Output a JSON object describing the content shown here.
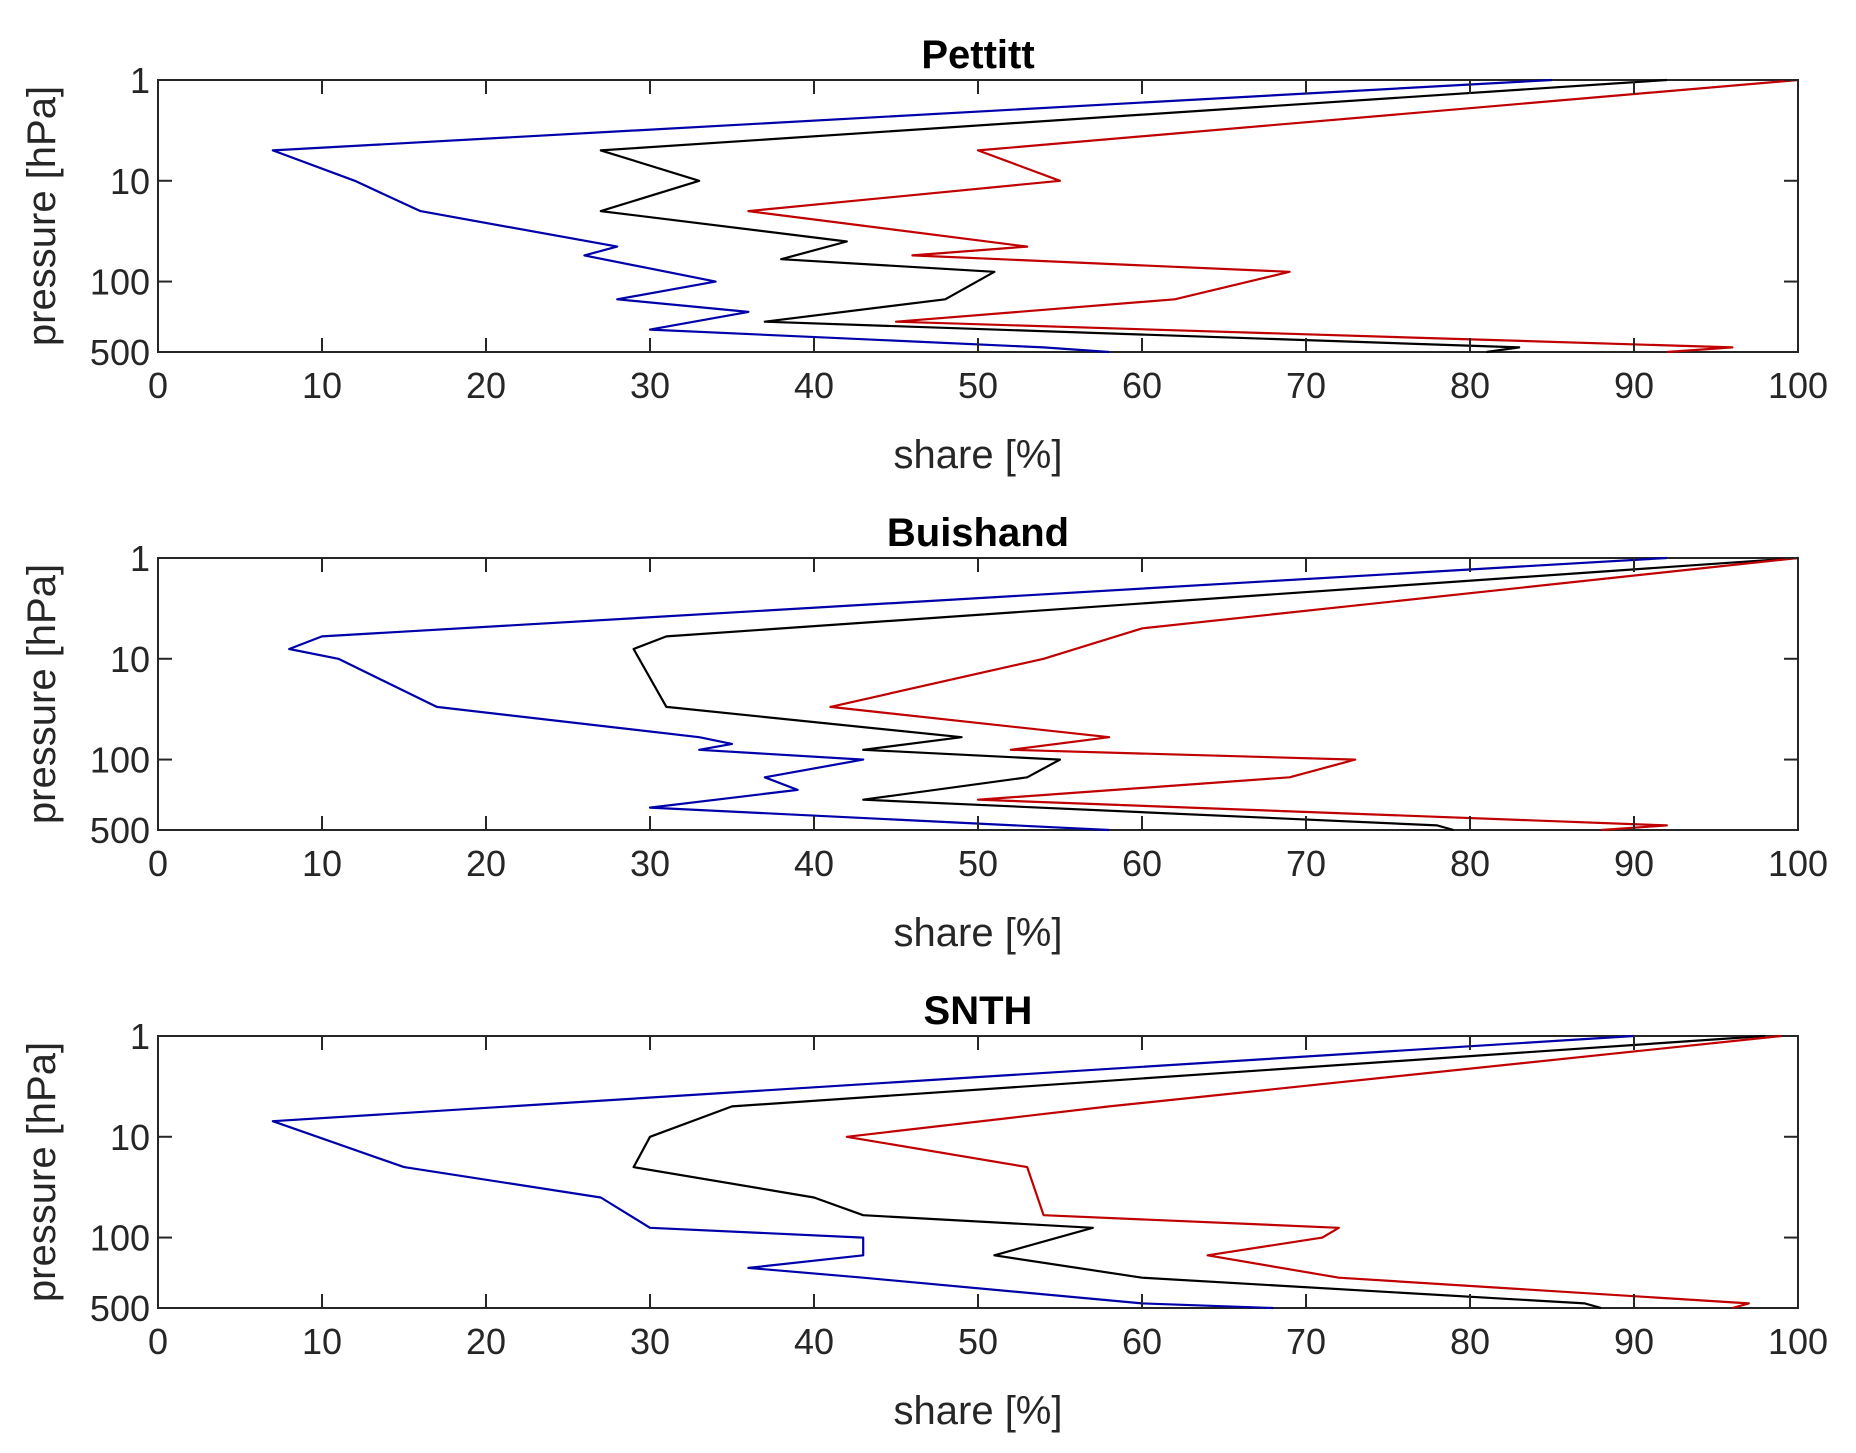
{
  "chart_data": [
    {
      "type": "line",
      "title": "Pettitt",
      "xlabel": "share [%]",
      "ylabel": "pressure [hPa]",
      "xlim": [
        0,
        100
      ],
      "xticks": [
        0,
        10,
        20,
        30,
        40,
        50,
        60,
        70,
        80,
        90,
        100
      ],
      "ylim_log": [
        1,
        500
      ],
      "yticks": [
        1,
        10,
        100,
        500
      ],
      "grid": false,
      "series": [
        {
          "name": "blue",
          "color": "#0000aa",
          "x": [
            85,
            7,
            12,
            16,
            28,
            26,
            34,
            28,
            36,
            30,
            54,
            58
          ],
          "y": [
            1,
            5,
            10,
            20,
            45,
            55,
            100,
            150,
            200,
            300,
            450,
            500
          ]
        },
        {
          "name": "black",
          "color": "#000000",
          "x": [
            92,
            27,
            33,
            27,
            42,
            38,
            51,
            48,
            37,
            83,
            81
          ],
          "y": [
            1,
            5,
            10,
            20,
            40,
            60,
            80,
            150,
            250,
            450,
            500
          ]
        },
        {
          "name": "red",
          "color": "#c00000",
          "x": [
            100,
            50,
            55,
            36,
            53,
            46,
            69,
            62,
            45,
            96,
            92
          ],
          "y": [
            1,
            5,
            10,
            20,
            45,
            55,
            80,
            150,
            250,
            450,
            500
          ]
        }
      ]
    },
    {
      "type": "line",
      "title": "Buishand",
      "xlabel": "share [%]",
      "ylabel": "pressure [hPa]",
      "xlim": [
        0,
        100
      ],
      "xticks": [
        0,
        10,
        20,
        30,
        40,
        50,
        60,
        70,
        80,
        90,
        100
      ],
      "ylim_log": [
        1,
        500
      ],
      "yticks": [
        1,
        10,
        100,
        500
      ],
      "grid": false,
      "series": [
        {
          "name": "blue",
          "color": "#0000aa",
          "x": [
            92,
            10,
            8,
            11,
            17,
            33,
            35,
            33,
            43,
            37,
            39,
            30,
            58
          ],
          "y": [
            1,
            6,
            8,
            10,
            30,
            60,
            70,
            80,
            100,
            150,
            200,
            300,
            500
          ]
        },
        {
          "name": "black",
          "color": "#000000",
          "x": [
            100,
            31,
            29,
            31,
            49,
            43,
            55,
            53,
            43,
            78,
            79
          ],
          "y": [
            1,
            6,
            8,
            30,
            60,
            80,
            100,
            150,
            250,
            450,
            500
          ]
        },
        {
          "name": "red",
          "color": "#c00000",
          "x": [
            100,
            60,
            54,
            41,
            58,
            52,
            73,
            69,
            50,
            92,
            88
          ],
          "y": [
            1,
            5,
            10,
            30,
            60,
            80,
            100,
            150,
            250,
            450,
            500
          ]
        }
      ]
    },
    {
      "type": "line",
      "title": "SNTH",
      "xlabel": "share [%]",
      "ylabel": "pressure [hPa]",
      "xlim": [
        0,
        100
      ],
      "xticks": [
        0,
        10,
        20,
        30,
        40,
        50,
        60,
        70,
        80,
        90,
        100
      ],
      "ylim_log": [
        1,
        500
      ],
      "yticks": [
        1,
        10,
        100,
        500
      ],
      "grid": false,
      "series": [
        {
          "name": "blue",
          "color": "#0000aa",
          "x": [
            90,
            7,
            15,
            27,
            30,
            43,
            43,
            36,
            43,
            60,
            68
          ],
          "y": [
            1,
            7,
            20,
            40,
            80,
            100,
            150,
            200,
            250,
            450,
            500
          ]
        },
        {
          "name": "black",
          "color": "#000000",
          "x": [
            98,
            35,
            30,
            29,
            40,
            43,
            57,
            51,
            60,
            87,
            88
          ],
          "y": [
            1,
            5,
            10,
            20,
            40,
            60,
            80,
            150,
            250,
            450,
            500
          ]
        },
        {
          "name": "red",
          "color": "#c00000",
          "x": [
            99,
            58,
            42,
            53,
            54,
            72,
            71,
            64,
            72,
            97,
            96
          ],
          "y": [
            1,
            5,
            10,
            20,
            60,
            80,
            100,
            150,
            250,
            450,
            500
          ]
        }
      ]
    }
  ]
}
